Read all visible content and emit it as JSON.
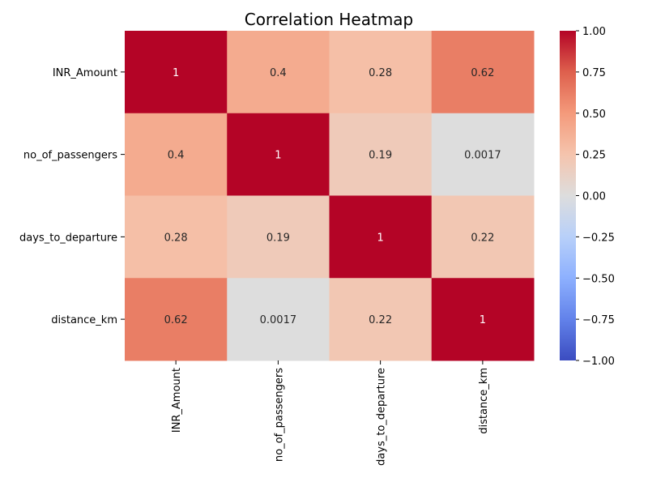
{
  "chart_data": {
    "type": "heatmap",
    "title": "Correlation Heatmap",
    "rows": [
      "INR_Amount",
      "no_of_passengers",
      "days_to_departure",
      "distance_km"
    ],
    "columns": [
      "INR_Amount",
      "no_of_passengers",
      "days_to_departure",
      "distance_km"
    ],
    "values": [
      [
        1,
        0.4,
        0.28,
        0.62
      ],
      [
        0.4,
        1,
        0.19,
        0.0017
      ],
      [
        0.28,
        0.19,
        1,
        0.22
      ],
      [
        0.62,
        0.0017,
        0.22,
        1
      ]
    ],
    "cell_labels": [
      [
        "1",
        "0.4",
        "0.28",
        "0.62"
      ],
      [
        "0.4",
        "1",
        "0.19",
        "0.0017"
      ],
      [
        "0.28",
        "0.19",
        "1",
        "0.22"
      ],
      [
        "0.62",
        "0.0017",
        "0.22",
        "1"
      ]
    ],
    "colormap": "coolwarm",
    "vmin": -1,
    "vmax": 1,
    "colorbar_ticks": [
      1.0,
      0.75,
      0.5,
      0.25,
      0.0,
      -0.25,
      -0.5,
      -0.75,
      -1.0
    ],
    "colorbar_tick_labels": [
      "1.00",
      "0.75",
      "0.50",
      "0.25",
      "0.00",
      "−0.25",
      "−0.50",
      "−0.75",
      "−1.00"
    ],
    "colors": {
      "low": "#3b4cc0",
      "mid": "#dddddd",
      "high": "#b40426"
    }
  }
}
